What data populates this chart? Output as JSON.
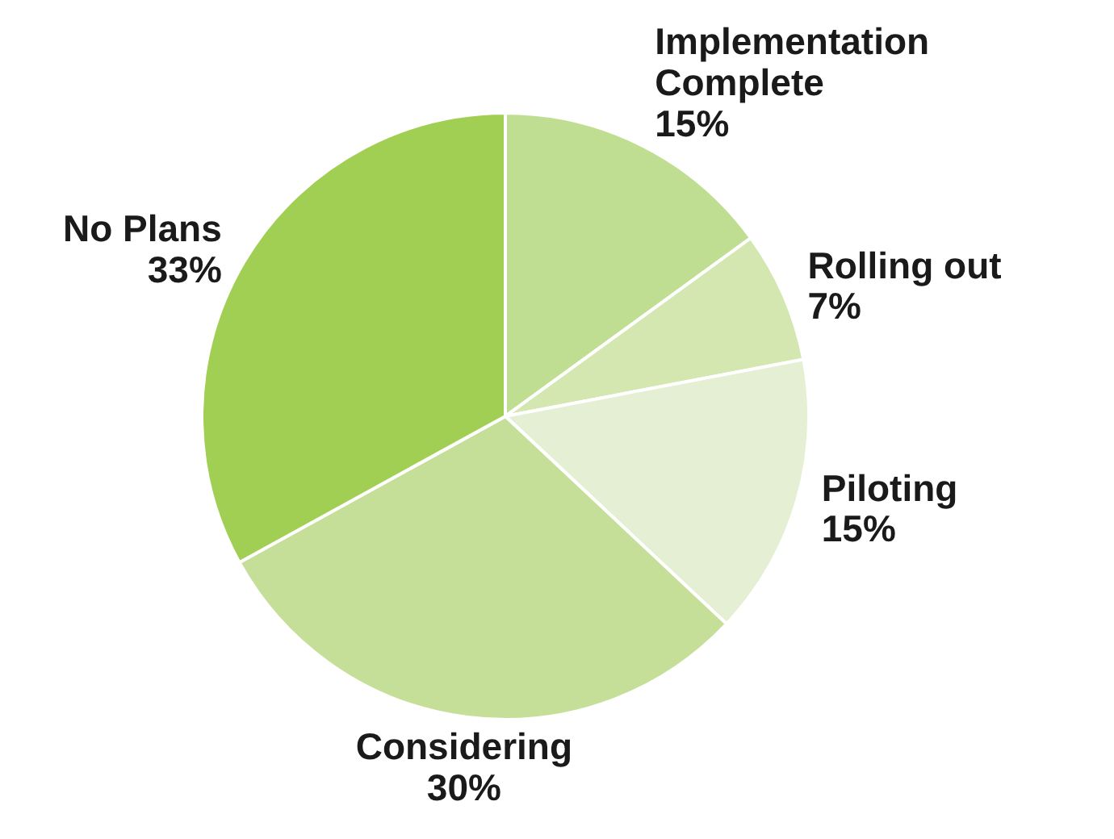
{
  "chart_data": {
    "type": "pie",
    "categories": [
      "Implementation Complete",
      "Rolling out",
      "Piloting",
      "Considering",
      "No Plans"
    ],
    "values": [
      15,
      7,
      15,
      30,
      33
    ],
    "value_labels": [
      "15%",
      "7%",
      "15%",
      "30%",
      "33%"
    ],
    "colors": [
      "#c0de91",
      "#d4e7b1",
      "#e4efd3",
      "#c5df99",
      "#a1cf53"
    ]
  }
}
